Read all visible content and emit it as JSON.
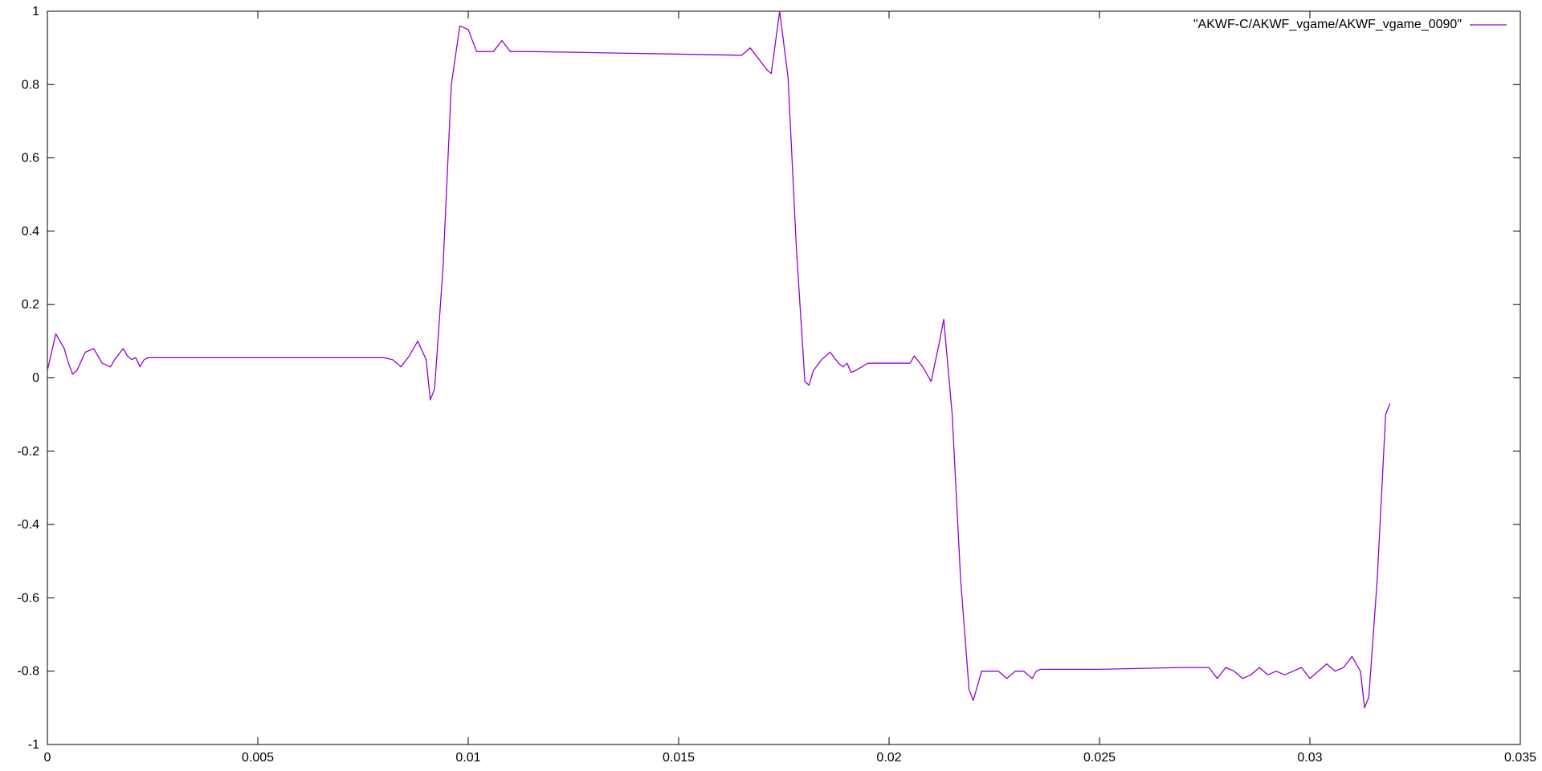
{
  "chart_data": {
    "type": "line",
    "title": "",
    "xlabel": "",
    "ylabel": "",
    "xlim": [
      0,
      0.035
    ],
    "ylim": [
      -1,
      1
    ],
    "x_ticks": [
      0,
      0.005,
      0.01,
      0.015,
      0.02,
      0.025,
      0.03,
      0.035
    ],
    "x_tick_labels": [
      "0",
      "0.005",
      "0.01",
      "0.015",
      "0.02",
      "0.025",
      "0.03",
      "0.035"
    ],
    "y_ticks": [
      -1,
      -0.8,
      -0.6,
      -0.4,
      -0.2,
      0,
      0.2,
      0.4,
      0.6,
      0.8,
      1
    ],
    "y_tick_labels": [
      "-1",
      "-0.8",
      "-0.6",
      "-0.4",
      "-0.2",
      "0",
      "0.2",
      "0.4",
      "0.6",
      "0.8",
      "1"
    ],
    "grid": false,
    "legend_position": "top-right",
    "series": [
      {
        "name": "\"AKWF-C/AKWF_vgame/AKWF_vgame_0090\"",
        "color": "#9400d3",
        "x": [
          0,
          0.0002,
          0.0004,
          0.0005,
          0.0006,
          0.0007,
          0.0009,
          0.0011,
          0.0013,
          0.0015,
          0.0016,
          0.0018,
          0.0019,
          0.002,
          0.0021,
          0.0022,
          0.0023,
          0.0024,
          0.005,
          0.008,
          0.0082,
          0.0084,
          0.0086,
          0.0088,
          0.009,
          0.0091,
          0.0092,
          0.0094,
          0.0096,
          0.0098,
          0.01,
          0.0102,
          0.0104,
          0.0106,
          0.0108,
          0.011,
          0.0115,
          0.014,
          0.0165,
          0.0167,
          0.0169,
          0.0171,
          0.0172,
          0.0174,
          0.0176,
          0.0178,
          0.018,
          0.0181,
          0.0182,
          0.0184,
          0.0186,
          0.0188,
          0.0189,
          0.019,
          0.0191,
          0.0192,
          0.0195,
          0.0205,
          0.0206,
          0.0208,
          0.021,
          0.0212,
          0.0213,
          0.0215,
          0.0217,
          0.0219,
          0.022,
          0.0222,
          0.0225,
          0.0226,
          0.0228,
          0.0229,
          0.023,
          0.0232,
          0.0234,
          0.0235,
          0.0236,
          0.0238,
          0.025,
          0.027,
          0.0276,
          0.0278,
          0.028,
          0.0282,
          0.0284,
          0.0286,
          0.0288,
          0.029,
          0.0292,
          0.0294,
          0.0296,
          0.0298,
          0.03,
          0.0302,
          0.0304,
          0.0306,
          0.0308,
          0.031,
          0.0312,
          0.0313,
          0.0314,
          0.0316,
          0.0318,
          0.0319
        ],
        "y": [
          0.02,
          0.12,
          0.08,
          0.04,
          0.01,
          0.02,
          0.07,
          0.08,
          0.04,
          0.03,
          0.05,
          0.08,
          0.06,
          0.05,
          0.055,
          0.03,
          0.05,
          0.055,
          0.055,
          0.055,
          0.05,
          0.03,
          0.06,
          0.1,
          0.05,
          -0.06,
          -0.03,
          0.3,
          0.8,
          0.96,
          0.95,
          0.89,
          0.89,
          0.89,
          0.92,
          0.89,
          0.89,
          0.885,
          0.88,
          0.9,
          0.87,
          0.84,
          0.83,
          1.0,
          0.82,
          0.35,
          -0.01,
          -0.02,
          0.02,
          0.05,
          0.07,
          0.04,
          0.03,
          0.04,
          0.015,
          0.02,
          0.04,
          0.04,
          0.06,
          0.03,
          -0.01,
          0.1,
          0.16,
          -0.1,
          -0.55,
          -0.85,
          -0.88,
          -0.8,
          -0.8,
          -0.8,
          -0.82,
          -0.81,
          -0.8,
          -0.8,
          -0.82,
          -0.8,
          -0.795,
          -0.795,
          -0.795,
          -0.79,
          -0.79,
          -0.82,
          -0.79,
          -0.8,
          -0.82,
          -0.81,
          -0.79,
          -0.81,
          -0.8,
          -0.81,
          -0.8,
          -0.79,
          -0.82,
          -0.8,
          -0.78,
          -0.8,
          -0.79,
          -0.76,
          -0.8,
          -0.9,
          -0.87,
          -0.55,
          -0.1,
          -0.07
        ]
      }
    ]
  }
}
